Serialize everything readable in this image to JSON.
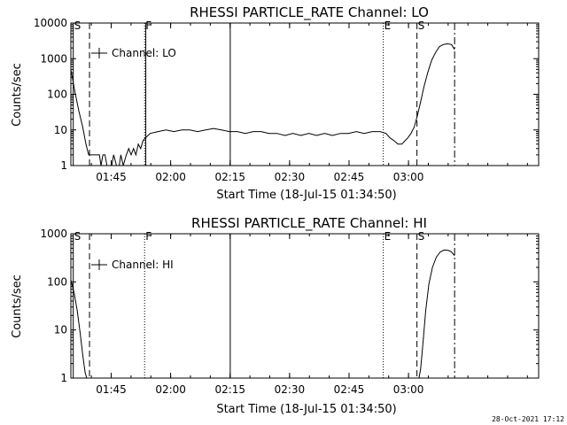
{
  "footer": {
    "timestamp": "28-Oct-2021 17:12"
  },
  "chart_data": [
    {
      "type": "line",
      "title": "RHESSI PARTICLE_RATE Channel: LO",
      "xlabel": "Start Time (18-Jul-15 01:34:50)",
      "ylabel": "Counts/sec",
      "yscale": "log",
      "ylim": [
        1,
        10000
      ],
      "xlim_minutes": [
        0,
        118
      ],
      "y_ticks": [
        "1",
        "10",
        "100",
        "1000",
        "10000"
      ],
      "x_ticks": [
        {
          "m": 10.17,
          "label": "01:45"
        },
        {
          "m": 25.17,
          "label": "02:00"
        },
        {
          "m": 40.17,
          "label": "02:15"
        },
        {
          "m": 55.17,
          "label": "02:30"
        },
        {
          "m": 70.17,
          "label": "02:45"
        },
        {
          "m": 85.17,
          "label": "03:00"
        }
      ],
      "legend": {
        "label": "Channel: LO",
        "position": "top-left"
      },
      "markers": [
        {
          "m": 0.6,
          "label": "S",
          "style": "solid-edge"
        },
        {
          "m": 4.7,
          "label": "",
          "style": "dashed"
        },
        {
          "m": 18.6,
          "label": "F",
          "style": "dotted"
        },
        {
          "m": 18.9,
          "label": "",
          "style": "solid"
        },
        {
          "m": 40.2,
          "label": "",
          "style": "solid"
        },
        {
          "m": 78.8,
          "label": "E",
          "style": "dotted"
        },
        {
          "m": 87.3,
          "label": "S",
          "style": "dashed"
        },
        {
          "m": 96.8,
          "label": "",
          "style": "dashdot"
        }
      ],
      "series": [
        {
          "x": [
            0,
            1,
            2,
            3,
            3.8,
            4.5,
            5.5,
            6.5,
            7.2,
            7.6,
            8.1,
            8.6,
            9.1,
            9.6,
            10.3,
            10.8,
            11.5,
            12.2,
            12.6,
            13.2,
            14,
            14.6,
            15.2,
            15.8,
            16.4,
            17,
            17.6,
            18.2,
            18.8,
            20,
            22,
            24,
            26,
            28,
            30,
            32,
            34,
            36,
            38,
            40,
            42,
            44,
            46,
            48,
            50,
            52,
            54,
            56,
            58,
            60,
            62,
            64,
            66,
            68,
            70,
            72,
            74,
            76,
            78,
            79.5,
            80.5,
            81.5,
            82.5,
            83.5,
            84.3,
            85,
            85.8,
            86.6,
            87.4,
            88.2,
            89,
            90,
            91,
            92,
            93,
            94,
            95,
            96,
            96.8
          ],
          "values": [
            500,
            120,
            35,
            12,
            4,
            2,
            2,
            2,
            2,
            1,
            2,
            2,
            1,
            1,
            1,
            2,
            1,
            1,
            2,
            1,
            2,
            3,
            2,
            3,
            2,
            4,
            3,
            5,
            6,
            8,
            9,
            10,
            9,
            10,
            10,
            9,
            10,
            11,
            10,
            9,
            9,
            8,
            9,
            9,
            8,
            8,
            7,
            8,
            7,
            8,
            7,
            8,
            7,
            8,
            8,
            9,
            8,
            9,
            9,
            8,
            6,
            5,
            4,
            4,
            5,
            6,
            8,
            12,
            25,
            60,
            150,
            400,
            900,
            1500,
            2200,
            2500,
            2600,
            2500,
            1800
          ]
        }
      ]
    },
    {
      "type": "line",
      "title": "RHESSI PARTICLE_RATE Channel: HI",
      "xlabel": "Start Time (18-Jul-15 01:34:50)",
      "ylabel": "Counts/sec",
      "yscale": "log",
      "ylim": [
        1,
        1000
      ],
      "xlim_minutes": [
        0,
        118
      ],
      "y_ticks": [
        "1",
        "10",
        "100",
        "1000"
      ],
      "x_ticks": [
        {
          "m": 10.17,
          "label": "01:45"
        },
        {
          "m": 25.17,
          "label": "02:00"
        },
        {
          "m": 40.17,
          "label": "02:15"
        },
        {
          "m": 55.17,
          "label": "02:30"
        },
        {
          "m": 70.17,
          "label": "02:45"
        },
        {
          "m": 85.17,
          "label": "03:00"
        }
      ],
      "legend": {
        "label": "Channel: HI",
        "position": "top-left"
      },
      "markers": [
        {
          "m": 0.6,
          "label": "S",
          "style": "solid-edge"
        },
        {
          "m": 4.7,
          "label": "",
          "style": "dashed"
        },
        {
          "m": 18.6,
          "label": "F",
          "style": "dotted"
        },
        {
          "m": 40.2,
          "label": "",
          "style": "solid"
        },
        {
          "m": 78.8,
          "label": "E",
          "style": "dotted"
        },
        {
          "m": 87.3,
          "label": "S",
          "style": "dashed"
        },
        {
          "m": 96.8,
          "label": "",
          "style": "dashdot"
        }
      ],
      "series": [
        {
          "x": [
            0,
            0.8,
            1.6,
            2.4,
            3.0,
            3.6,
            4.0,
            87.8,
            88.2,
            88.8,
            89.5,
            90.3,
            91.2,
            92.2,
            93.2,
            94.2,
            95.2,
            96.0,
            96.8
          ],
          "values": [
            110,
            60,
            25,
            8,
            3,
            1.3,
            1,
            1,
            1.5,
            5,
            25,
            90,
            200,
            330,
            420,
            460,
            450,
            420,
            350
          ]
        }
      ]
    }
  ]
}
